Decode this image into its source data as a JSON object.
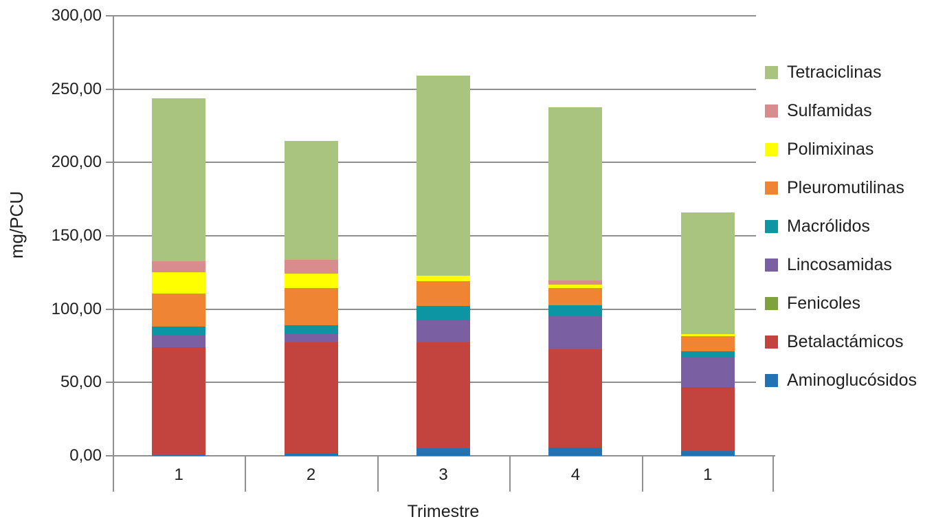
{
  "chart_data": {
    "type": "bar",
    "stacked": true,
    "title": "",
    "xlabel": "Trimestre",
    "ylabel": "mg/PCU",
    "ylim": [
      0,
      300
    ],
    "ytick_step": 50,
    "ytick_labels": [
      "0,00",
      "50,00",
      "100,00",
      "150,00",
      "200,00",
      "250,00",
      "300,00"
    ],
    "categories": [
      "1",
      "2",
      "3",
      "4",
      "1"
    ],
    "grid": true,
    "legend_position": "right",
    "series": [
      {
        "name": "Aminoglucósidos",
        "color": "#2173B4",
        "values": [
          0.7,
          1.6,
          5.0,
          5.4,
          3.1
        ]
      },
      {
        "name": "Betalactámicos",
        "color": "#C3433F",
        "values": [
          73.5,
          75.7,
          72.3,
          67.3,
          43.8
        ]
      },
      {
        "name": "Fenicoles",
        "color": "#7EA23C",
        "values": [
          0,
          0,
          0,
          0,
          0
        ]
      },
      {
        "name": "Lincosamidas",
        "color": "#7A5FA2",
        "values": [
          8.3,
          6.3,
          15.2,
          22.9,
          20.3
        ]
      },
      {
        "name": "Macrólidos",
        "color": "#0D95A3",
        "values": [
          5.8,
          5.5,
          9.8,
          7.1,
          4.2
        ]
      },
      {
        "name": "Pleuromutilinas",
        "color": "#EF8532",
        "values": [
          22.3,
          25.3,
          16.8,
          11.7,
          10.2
        ]
      },
      {
        "name": "Polimixinas",
        "color": "#FFFF00",
        "values": [
          14.7,
          9.8,
          3.5,
          2.5,
          1.2
        ]
      },
      {
        "name": "Sulfamidas",
        "color": "#D98C8E",
        "values": [
          7.5,
          9.4,
          0,
          2.6,
          0
        ]
      },
      {
        "name": "Tetraciclinas",
        "color": "#A9C47E",
        "values": [
          110.9,
          81.2,
          136.8,
          118.0,
          83.2
        ]
      }
    ]
  },
  "style": {
    "axis_color": "#8E8E8E",
    "text_color": "#1F1F1F",
    "background": "#FFFFFF"
  }
}
